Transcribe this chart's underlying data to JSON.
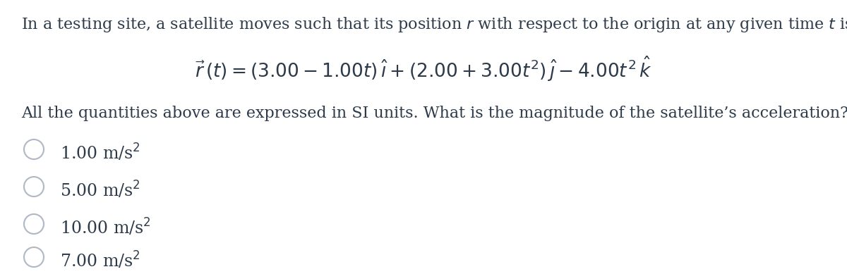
{
  "background_color": "#ffffff",
  "text_color": "#2d3a4a",
  "line1": "In a testing site, a satellite moves such that its position $r$ with respect to the origin at any given time $t$ is",
  "equation": "$\\vec{r}\\,(t) = (3.00 - 1.00t)\\,\\hat{\\imath} + (2.00 + 3.00t^2)\\,\\hat{\\jmath} - 4.00t^2\\,\\hat{k}$",
  "line3": "All the quantities above are expressed in SI units. What is the magnitude of the satellite’s acceleration?",
  "choices": [
    "1.00 m/s$^2$",
    "5.00 m/s$^2$",
    "10.00 m/s$^2$",
    "7.00 m/s$^2$"
  ],
  "font_size_body": 16,
  "font_size_eq": 19,
  "font_size_choices": 17,
  "circle_color": "#b0b8c4",
  "circle_linewidth": 1.5
}
